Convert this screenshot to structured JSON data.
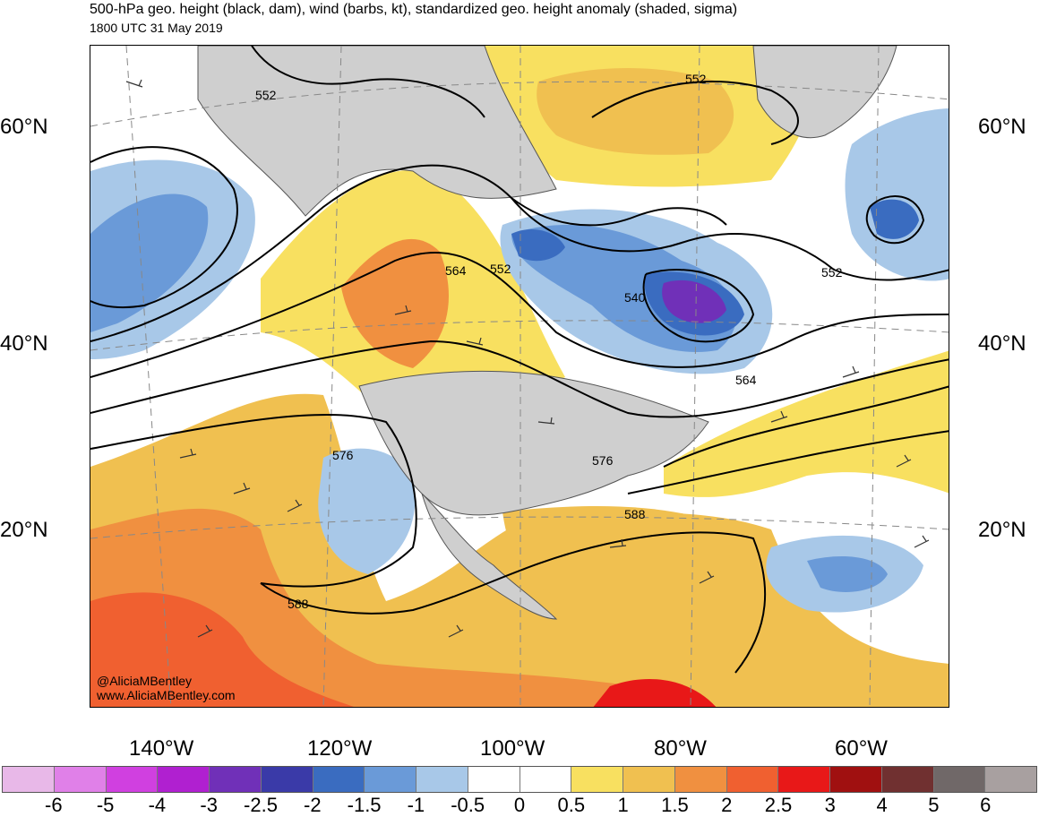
{
  "header": {
    "title": "500-hPa geo. height (black, dam), wind (barbs, kt), standardized geo. height anomaly (shaded, sigma)",
    "valid_time": "1800 UTC 31 May 2019"
  },
  "map": {
    "latitude_labels": [
      "60°N",
      "40°N",
      "20°N"
    ],
    "longitude_labels": [
      "140°W",
      "120°W",
      "100°W",
      "80°W",
      "60°W"
    ],
    "contour_labels": [
      "552",
      "552",
      "552",
      "552",
      "540",
      "564",
      "564",
      "576",
      "576",
      "588",
      "588"
    ],
    "credits": {
      "handle": "@AliciaMBentley",
      "website": "www.AliciaMBentley.com"
    },
    "colors": {
      "land": "#cfcfcf",
      "contour": "#000000",
      "border": "#555555"
    }
  },
  "colorbar": {
    "labels": [
      "-6",
      "-5",
      "-4",
      "-3",
      "-2.5",
      "-2",
      "-1.5",
      "-1",
      "-0.5",
      "0",
      "0.5",
      "1",
      "1.5",
      "2",
      "2.5",
      "3",
      "4",
      "5",
      "6"
    ],
    "colors": [
      "#e8b8e8",
      "#e080e8",
      "#d040e0",
      "#b020d0",
      "#7030b8",
      "#3a3aa8",
      "#3a6cc0",
      "#6a9ad8",
      "#a8c8e8",
      "#ffffff",
      "#ffffff",
      "#f8e060",
      "#f0c050",
      "#f09040",
      "#f06030",
      "#e81818",
      "#a01010",
      "#703030",
      "#706868",
      "#a8a0a0"
    ]
  }
}
